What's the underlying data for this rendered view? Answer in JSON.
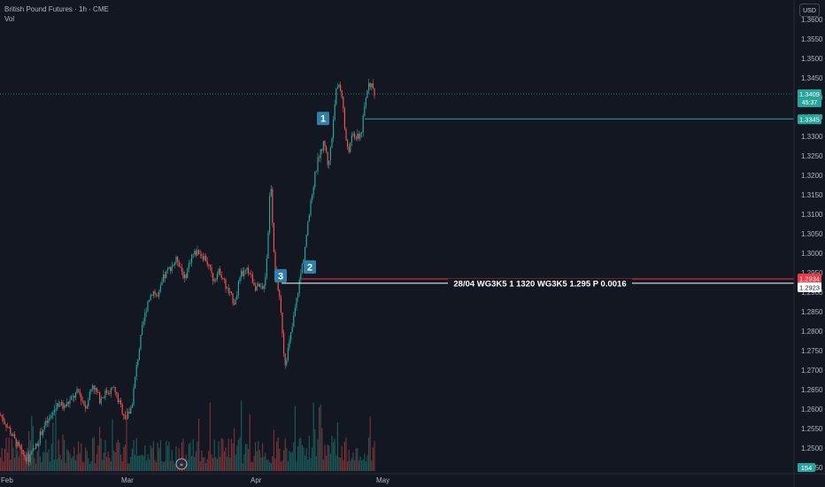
{
  "header": {
    "symbol_line": "British Pound Futures · 1h · CME",
    "volume_label": "Vol",
    "currency_button": "USD"
  },
  "colors": {
    "background": "#131722",
    "up": "#26a69a",
    "down": "#ef5350",
    "grid": "#1e222d",
    "axis_text": "#b2b5be",
    "line_1": "#26a69a",
    "line_2": "#f23645",
    "line_3": "#ffffff",
    "marker_box": "#2f7fa6"
  },
  "chart_data": {
    "type": "candlestick",
    "title": "British Pound Futures · 1h · CME",
    "x_axis_labels": [
      "Feb",
      "Mar",
      "Apr",
      "May"
    ],
    "y_axis": {
      "ticks": [
        1.36,
        1.355,
        1.35,
        1.345,
        1.34,
        1.335,
        1.33,
        1.325,
        1.32,
        1.315,
        1.31,
        1.305,
        1.3,
        1.295,
        1.29,
        1.285,
        1.28,
        1.275,
        1.27,
        1.265,
        1.26,
        1.255,
        1.25,
        1.245
      ],
      "ylim": [
        1.2425,
        1.361
      ]
    },
    "price_path": [
      [
        0,
        1.2585
      ],
      [
        8,
        1.2555
      ],
      [
        16,
        1.252
      ],
      [
        24,
        1.2485
      ],
      [
        32,
        1.2472
      ],
      [
        40,
        1.2505
      ],
      [
        48,
        1.2552
      ],
      [
        56,
        1.2575
      ],
      [
        64,
        1.2615
      ],
      [
        72,
        1.2605
      ],
      [
        80,
        1.2625
      ],
      [
        88,
        1.2645
      ],
      [
        96,
        1.2605
      ],
      [
        104,
        1.2665
      ],
      [
        112,
        1.2625
      ],
      [
        120,
        1.2645
      ],
      [
        128,
        1.2652
      ],
      [
        136,
        1.2605
      ],
      [
        142,
        1.2575
      ],
      [
        148,
        1.2605
      ],
      [
        154,
        1.2715
      ],
      [
        160,
        1.2805
      ],
      [
        166,
        1.2875
      ],
      [
        172,
        1.2905
      ],
      [
        178,
        1.2885
      ],
      [
        184,
        1.2935
      ],
      [
        192,
        1.2965
      ],
      [
        200,
        1.2985
      ],
      [
        208,
        1.2935
      ],
      [
        216,
        1.2995
      ],
      [
        224,
        1.3005
      ],
      [
        232,
        1.2985
      ],
      [
        240,
        1.2935
      ],
      [
        248,
        1.2955
      ],
      [
        256,
        1.2905
      ],
      [
        264,
        1.2875
      ],
      [
        272,
        1.2945
      ],
      [
        280,
        1.2955
      ],
      [
        288,
        1.2915
      ],
      [
        296,
        1.2905
      ],
      [
        300,
        1.2955
      ],
      [
        303,
        1.3085
      ],
      [
        305,
        1.3205
      ],
      [
        307,
        1.3095
      ],
      [
        310,
        1.2955
      ],
      [
        314,
        1.2905
      ],
      [
        318,
        1.2815
      ],
      [
        321,
        1.2715
      ],
      [
        325,
        1.2755
      ],
      [
        330,
        1.2815
      ],
      [
        336,
        1.2905
      ],
      [
        342,
        1.2985
      ],
      [
        348,
        1.3085
      ],
      [
        354,
        1.3185
      ],
      [
        360,
        1.3255
      ],
      [
        366,
        1.3285
      ],
      [
        370,
        1.3225
      ],
      [
        374,
        1.3285
      ],
      [
        378,
        1.3405
      ],
      [
        382,
        1.3435
      ],
      [
        386,
        1.3405
      ],
      [
        390,
        1.3285
      ],
      [
        394,
        1.3265
      ],
      [
        398,
        1.3305
      ],
      [
        404,
        1.3295
      ],
      [
        408,
        1.3315
      ],
      [
        412,
        1.3385
      ],
      [
        416,
        1.3445
      ],
      [
        420,
        1.3425
      ],
      [
        423,
        1.3409
      ]
    ],
    "volume_max": 154,
    "last_price": 1.3409,
    "last_price_sub": "45:37",
    "volume_last": "154",
    "horizontal_lines": [
      {
        "marker": "1",
        "price": 1.3345,
        "price_label": "1.3345",
        "color": "#26a69a",
        "annotation": ""
      },
      {
        "marker": "2",
        "price": 1.2934,
        "price_label": "1.2934",
        "color": "#f23645",
        "annotation": ""
      },
      {
        "marker": "3",
        "price": 1.2923,
        "price_label": "1.2923",
        "color": "#ffffff",
        "annotation": "28/04 WG3K5 1 1320 WG3K5 1.295 P 0.0016"
      }
    ],
    "grid": false
  }
}
